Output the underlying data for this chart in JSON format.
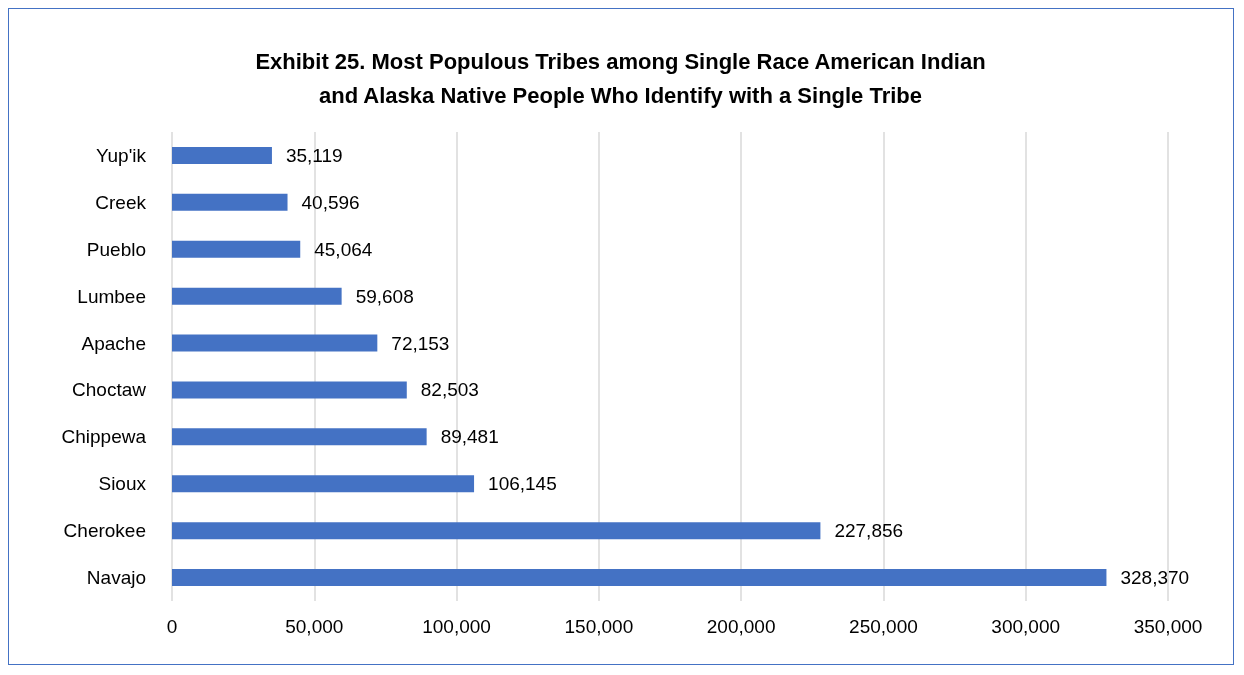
{
  "chart_data": {
    "type": "bar",
    "orientation": "horizontal",
    "title": "Exhibit 25. Most Populous Tribes among Single Race American Indian\nand Alaska Native People Who Identify with a Single Tribe",
    "categories": [
      "Yup'ik",
      "Creek",
      "Pueblo",
      "Lumbee",
      "Apache",
      "Choctaw",
      "Chippewa",
      "Sioux",
      "Cherokee",
      "Navajo"
    ],
    "values": [
      35119,
      40596,
      45064,
      59608,
      72153,
      82503,
      89481,
      106145,
      227856,
      328370
    ],
    "value_labels": [
      "35,119",
      "40,596",
      "45,064",
      "59,608",
      "72,153",
      "82,503",
      "89,481",
      "106,145",
      "227,856",
      "328,370"
    ],
    "color": "#4472c4",
    "xlim": [
      0,
      350000
    ],
    "xticks": [
      0,
      {
        "value": 50000,
        "label": "50,000"
      },
      {
        "value": 100000,
        "label": "100,000"
      },
      {
        "value": 150000,
        "label": "150,000"
      },
      {
        "value": 200000,
        "label": "200,000"
      },
      {
        "value": 250000,
        "label": "250,000"
      },
      {
        "value": 300000,
        "label": "300,000"
      },
      {
        "value": 350000,
        "label": "350,000"
      }
    ],
    "grid": "x"
  }
}
